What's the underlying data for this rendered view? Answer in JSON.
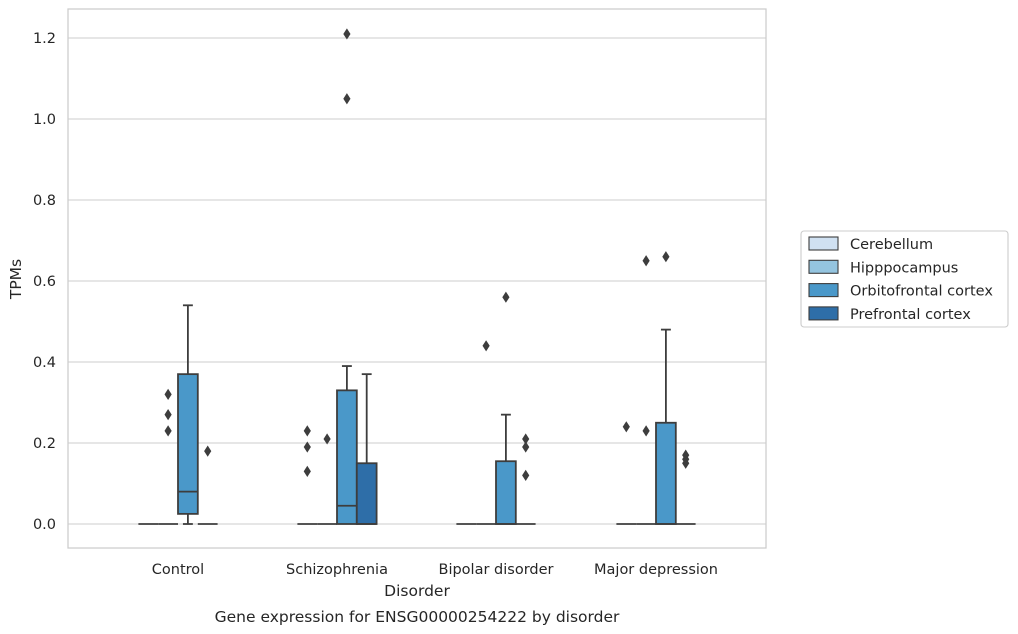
{
  "chart_data": {
    "type": "box",
    "title": "",
    "caption": "Gene expression for ENSG00000254222 by disorder",
    "xlabel": "Disorder",
    "ylabel": "TPMs",
    "ylim": [
      -0.06,
      1.27
    ],
    "yticks": [
      0.0,
      0.2,
      0.4,
      0.6,
      0.8,
      1.0,
      1.2
    ],
    "ytick_labels": [
      "0.0",
      "0.2",
      "0.4",
      "0.6",
      "0.8",
      "1.0",
      "1.2"
    ],
    "grid": "horizontal",
    "legend_placement": "right",
    "categories": [
      "Control",
      "Schizophrenia",
      "Bipolar disorder",
      "Major depression"
    ],
    "series": [
      {
        "name": "Cerebellum",
        "color": "#d0e1f2",
        "boxes": [
          {
            "q1": 0,
            "median": 0,
            "q3": 0,
            "whisker_low": 0,
            "whisker_high": 0,
            "outliers": []
          },
          {
            "q1": 0,
            "median": 0,
            "q3": 0,
            "whisker_low": 0,
            "whisker_high": 0,
            "outliers": [
              0.23,
              0.19,
              0.13
            ]
          },
          {
            "q1": 0,
            "median": 0,
            "q3": 0,
            "whisker_low": 0,
            "whisker_high": 0,
            "outliers": []
          },
          {
            "q1": 0,
            "median": 0,
            "q3": 0,
            "whisker_low": 0,
            "whisker_high": 0,
            "outliers": [
              0.24
            ]
          }
        ]
      },
      {
        "name": "Hipppocampus",
        "color": "#94c4df",
        "boxes": [
          {
            "q1": 0,
            "median": 0,
            "q3": 0,
            "whisker_low": 0,
            "whisker_high": 0,
            "outliers": [
              0.32,
              0.27,
              0.23
            ]
          },
          {
            "q1": 0,
            "median": 0,
            "q3": 0,
            "whisker_low": 0,
            "whisker_high": 0,
            "outliers": [
              0.21
            ]
          },
          {
            "q1": 0,
            "median": 0,
            "q3": 0,
            "whisker_low": 0,
            "whisker_high": 0,
            "outliers": [
              0.44
            ]
          },
          {
            "q1": 0,
            "median": 0,
            "q3": 0,
            "whisker_low": 0,
            "whisker_high": 0,
            "outliers": [
              0.65,
              0.23
            ]
          }
        ]
      },
      {
        "name": "Orbitofrontal cortex",
        "color": "#4a98c9",
        "boxes": [
          {
            "q1": 0.025,
            "median": 0.08,
            "q3": 0.37,
            "whisker_low": 0,
            "whisker_high": 0.54,
            "outliers": []
          },
          {
            "q1": 0,
            "median": 0.045,
            "q3": 0.33,
            "whisker_low": 0,
            "whisker_high": 0.39,
            "outliers": [
              1.21,
              1.05
            ]
          },
          {
            "q1": 0,
            "median": 0,
            "q3": 0.155,
            "whisker_low": 0,
            "whisker_high": 0.27,
            "outliers": [
              0.56
            ]
          },
          {
            "q1": 0,
            "median": 0,
            "q3": 0.25,
            "whisker_low": 0,
            "whisker_high": 0.48,
            "outliers": [
              0.66
            ]
          }
        ]
      },
      {
        "name": "Prefrontal cortex",
        "color": "#2e6ea8",
        "boxes": [
          {
            "q1": 0,
            "median": 0,
            "q3": 0,
            "whisker_low": 0,
            "whisker_high": 0,
            "outliers": [
              0.18
            ]
          },
          {
            "q1": 0,
            "median": 0,
            "q3": 0.15,
            "whisker_low": 0,
            "whisker_high": 0.37,
            "outliers": []
          },
          {
            "q1": 0,
            "median": 0,
            "q3": 0,
            "whisker_low": 0,
            "whisker_high": 0,
            "outliers": [
              0.21,
              0.19,
              0.12
            ]
          },
          {
            "q1": 0,
            "median": 0,
            "q3": 0,
            "whisker_low": 0,
            "whisker_high": 0,
            "outliers": [
              0.17,
              0.16,
              0.15
            ]
          }
        ]
      }
    ]
  }
}
